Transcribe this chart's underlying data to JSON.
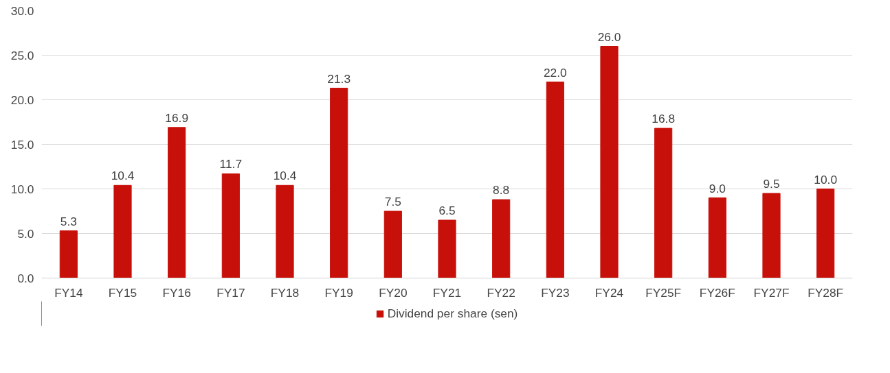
{
  "chart_data": {
    "type": "bar",
    "categories": [
      "FY14",
      "FY15",
      "FY16",
      "FY17",
      "FY18",
      "FY19",
      "FY20",
      "FY21",
      "FY22",
      "FY23",
      "FY24",
      "FY25F",
      "FY26F",
      "FY27F",
      "FY28F"
    ],
    "series": [
      {
        "name": "Dividend per share (sen)",
        "color": "#c8100a",
        "values": [
          5.3,
          10.4,
          16.9,
          11.7,
          10.4,
          21.3,
          7.5,
          6.5,
          8.8,
          22.0,
          26.0,
          16.8,
          9.0,
          9.5,
          10.0
        ],
        "value_labels": [
          "5.3",
          "10.4",
          "16.9",
          "11.7",
          "10.4",
          "21.3",
          "7.5",
          "6.5",
          "8.8",
          "22.0",
          "26.0",
          "16.8",
          "9.0",
          "9.5",
          "10.0"
        ]
      }
    ],
    "ylim": [
      0,
      30
    ],
    "yticks": [
      {
        "value": 0,
        "label": "0.0"
      },
      {
        "value": 5,
        "label": "5.0"
      },
      {
        "value": 10,
        "label": "10.0"
      },
      {
        "value": 15,
        "label": "15.0"
      },
      {
        "value": 20,
        "label": "20.0"
      },
      {
        "value": 25,
        "label": "25.0"
      },
      {
        "value": 30,
        "label": "30.0"
      }
    ],
    "grid": "y",
    "legend": "bottom"
  }
}
